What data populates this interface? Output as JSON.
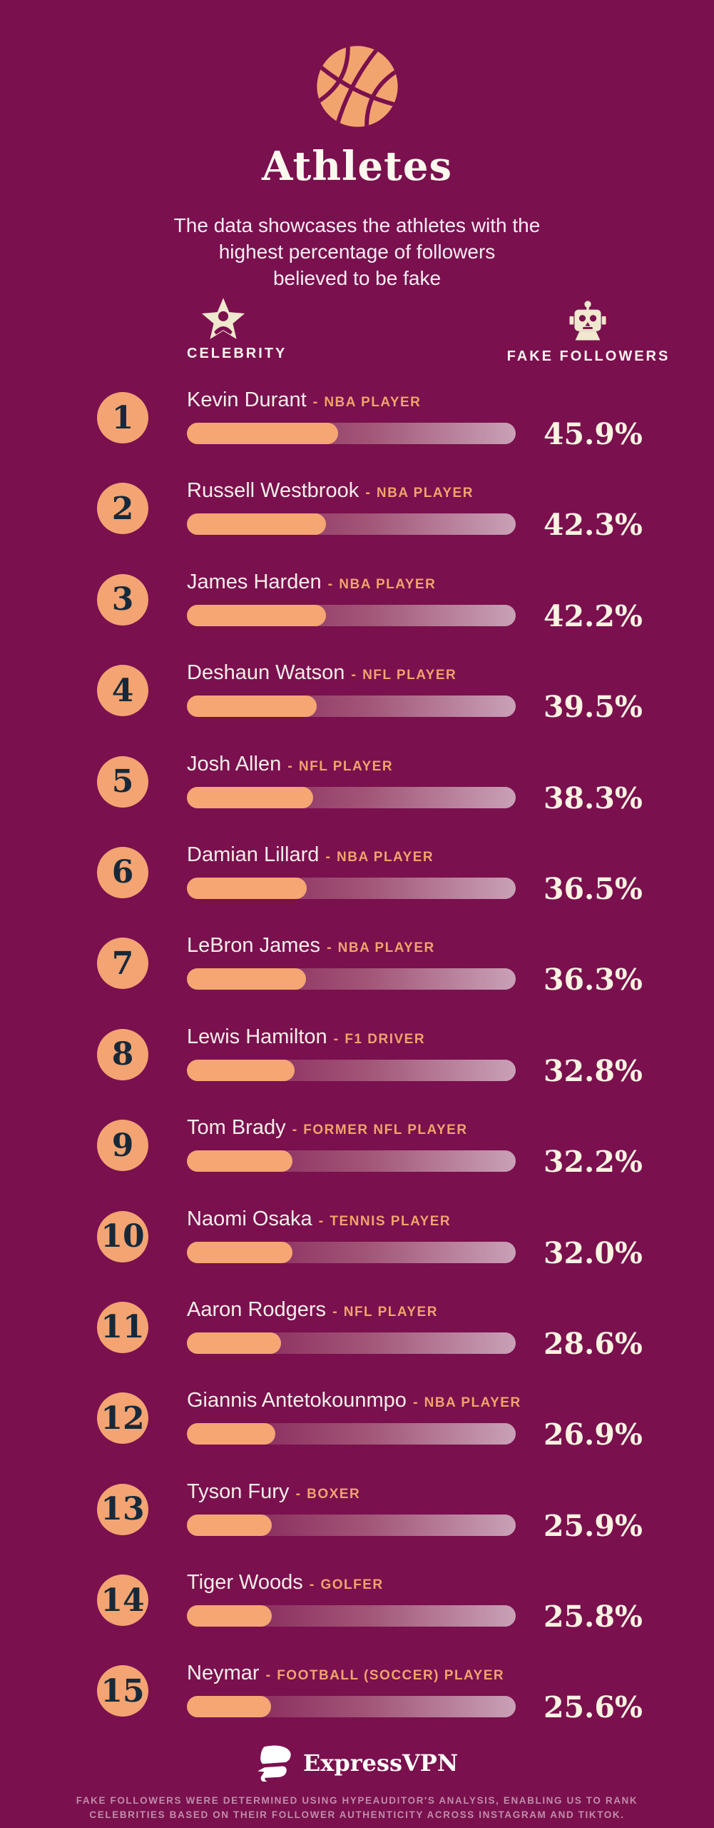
{
  "title": "Athletes",
  "subtitle_lines": [
    "The data showcases the athletes with the",
    "highest percentage of followers",
    "believed to be fake"
  ],
  "columns": {
    "celebrity_label": "CELEBRITY",
    "fake_followers_label": "FAKE FOLLOWERS"
  },
  "role_separator": "-",
  "rows": [
    {
      "rank": "1",
      "name": "Kevin Durant",
      "role": "NBA PLAYER",
      "value": "45.9%",
      "pct": 45.9
    },
    {
      "rank": "2",
      "name": "Russell Westbrook",
      "role": "NBA PLAYER",
      "value": "42.3%",
      "pct": 42.3
    },
    {
      "rank": "3",
      "name": "James Harden",
      "role": "NBA PLAYER",
      "value": "42.2%",
      "pct": 42.2
    },
    {
      "rank": "4",
      "name": "Deshaun Watson",
      "role": "NFL PLAYER",
      "value": "39.5%",
      "pct": 39.5
    },
    {
      "rank": "5",
      "name": "Josh Allen",
      "role": "NFL PLAYER",
      "value": "38.3%",
      "pct": 38.3
    },
    {
      "rank": "6",
      "name": "Damian Lillard",
      "role": "NBA PLAYER",
      "value": "36.5%",
      "pct": 36.5
    },
    {
      "rank": "7",
      "name": "LeBron James",
      "role": "NBA PLAYER",
      "value": "36.3%",
      "pct": 36.3
    },
    {
      "rank": "8",
      "name": "Lewis Hamilton",
      "role": "F1 DRIVER",
      "value": "32.8%",
      "pct": 32.8
    },
    {
      "rank": "9",
      "name": "Tom Brady",
      "role": "FORMER NFL PLAYER",
      "value": "32.2%",
      "pct": 32.2
    },
    {
      "rank": "10",
      "name": "Naomi Osaka",
      "role": "TENNIS PLAYER",
      "value": "32.0%",
      "pct": 32.0
    },
    {
      "rank": "11",
      "name": "Aaron Rodgers",
      "role": "NFL PLAYER",
      "value": "28.6%",
      "pct": 28.6
    },
    {
      "rank": "12",
      "name": "Giannis Antetokounmpo",
      "role": "NBA PLAYER",
      "value": "26.9%",
      "pct": 26.9
    },
    {
      "rank": "13",
      "name": "Tyson Fury",
      "role": "BOXER",
      "value": "25.9%",
      "pct": 25.9
    },
    {
      "rank": "14",
      "name": "Tiger Woods",
      "role": "GOLFER",
      "value": "25.8%",
      "pct": 25.8
    },
    {
      "rank": "15",
      "name": "Neymar",
      "role": "FOOTBALL (SOCCER) PLAYER",
      "value": "25.6%",
      "pct": 25.6
    }
  ],
  "chart_data": {
    "type": "bar",
    "title": "Athletes",
    "subtitle": "The data showcases the athletes with the highest percentage of followers believed to be fake",
    "orientation": "horizontal",
    "categories": [
      "Kevin Durant",
      "Russell Westbrook",
      "James Harden",
      "Deshaun Watson",
      "Josh Allen",
      "Damian Lillard",
      "LeBron James",
      "Lewis Hamilton",
      "Tom Brady",
      "Naomi Osaka",
      "Aaron Rodgers",
      "Giannis Antetokounmpo",
      "Tyson Fury",
      "Tiger Woods",
      "Neymar"
    ],
    "category_roles": [
      "NBA PLAYER",
      "NBA PLAYER",
      "NBA PLAYER",
      "NFL PLAYER",
      "NFL PLAYER",
      "NBA PLAYER",
      "NBA PLAYER",
      "F1 DRIVER",
      "FORMER NFL PLAYER",
      "TENNIS PLAYER",
      "NFL PLAYER",
      "NBA PLAYER",
      "BOXER",
      "GOLFER",
      "FOOTBALL (SOCCER) PLAYER"
    ],
    "values": [
      45.9,
      42.3,
      42.2,
      39.5,
      38.3,
      36.5,
      36.3,
      32.8,
      32.2,
      32.0,
      28.6,
      26.9,
      25.9,
      25.8,
      25.6
    ],
    "value_unit": "%",
    "xlabel": "FAKE FOLLOWERS",
    "ylabel": "CELEBRITY",
    "xlim": [
      0,
      100
    ],
    "grid": false,
    "legend": false,
    "data_labels": true
  },
  "footer": {
    "brand": "ExpressVPN",
    "disclaimer_lines": [
      "FAKE FOLLOWERS WERE DETERMINED USING HYPEAUDITOR'S ANALYSIS, ENABLING US TO RANK",
      "CELEBRITIES BASED ON THEIR FOLLOWER AUTHENTICITY ACROSS INSTAGRAM AND TIKTOK."
    ]
  },
  "colors": {
    "background": "#7A104E",
    "accent_orange": "#F5A673",
    "cream": "#FBF3E1",
    "track_light": "#C9A1B7",
    "rank_text": "#16293B",
    "disclaimer_text": "#C08CA9"
  }
}
